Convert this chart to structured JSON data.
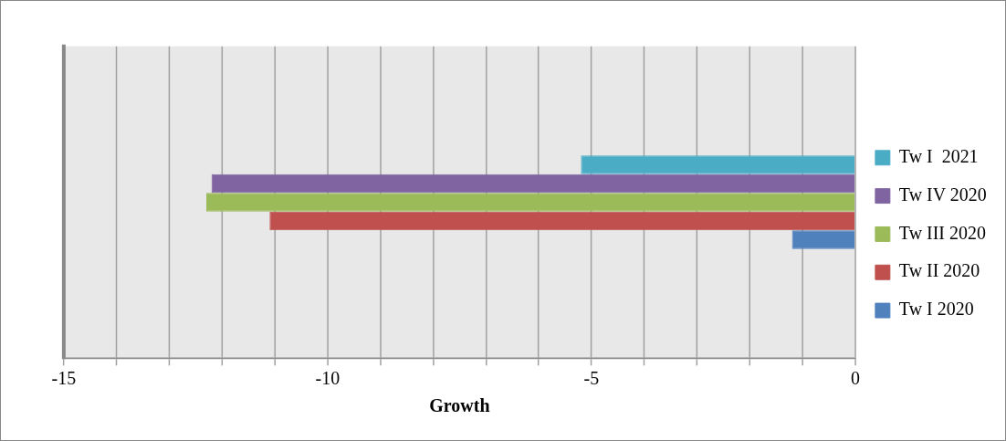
{
  "chart_data": {
    "type": "bar",
    "orientation": "horizontal",
    "xlabel": "Growth",
    "categories": [
      null
    ],
    "series": [
      {
        "name": "Tw I  2021",
        "color": "#4bacc6",
        "values": [
          -5.2
        ]
      },
      {
        "name": "Tw IV 2020",
        "color": "#8064a2",
        "values": [
          -12.2
        ]
      },
      {
        "name": "Tw III 2020",
        "color": "#9bbb59",
        "values": [
          -12.3
        ]
      },
      {
        "name": "Tw II 2020",
        "color": "#c0504d",
        "values": [
          -11.1
        ]
      },
      {
        "name": "Tw I 2020",
        "color": "#4f81bd",
        "values": [
          -1.2
        ]
      }
    ],
    "xlim": [
      -15,
      0
    ],
    "xticks": [
      -15,
      {
        "value": -14,
        "label": null
      },
      {
        "value": -13,
        "label": null
      },
      {
        "value": -12,
        "label": null
      },
      {
        "value": -11,
        "label": null
      },
      -10,
      {
        "value": -9,
        "label": null
      },
      {
        "value": -8,
        "label": null
      },
      {
        "value": -7,
        "label": null
      },
      {
        "value": -6,
        "label": null
      },
      -5,
      {
        "value": -4,
        "label": null
      },
      {
        "value": -3,
        "label": null
      },
      {
        "value": -2,
        "label": null
      },
      {
        "value": -1,
        "label": null
      },
      0
    ],
    "grid": "x",
    "legend": "right"
  }
}
